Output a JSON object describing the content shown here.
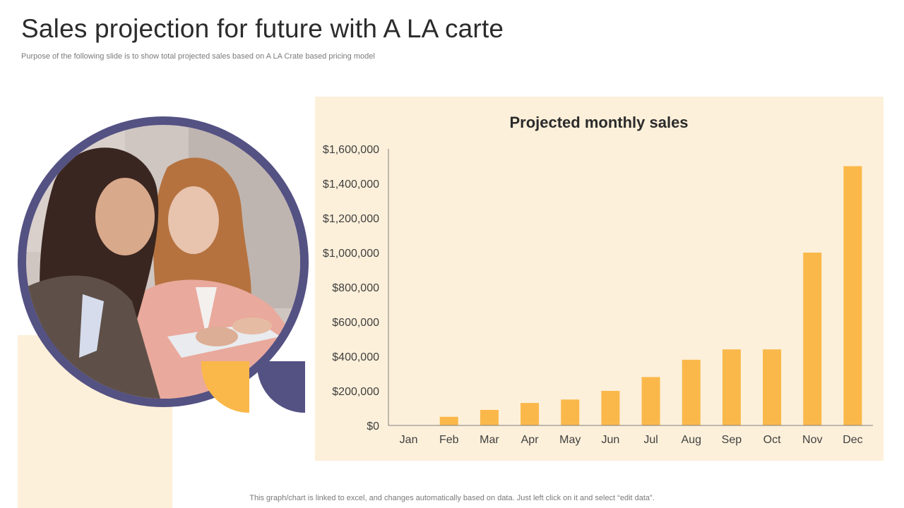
{
  "slide": {
    "title": "Sales projection for future with A LA carte",
    "subtitle": "Purpose of the following slide is to show total projected sales based on A LA Crate based pricing model",
    "footer": "This graph/chart is linked to excel,  and changes automatically based on data. Just left click on it and select “edit data”."
  },
  "colors": {
    "accent_yellow": "#fbb84a",
    "accent_purple": "#545183",
    "panel_bg": "#fdf0da"
  },
  "chart_data": {
    "type": "bar",
    "title": "Projected monthly sales",
    "xlabel": "",
    "ylabel": "",
    "categories": [
      "Jan",
      "Feb",
      "Mar",
      "Apr",
      "May",
      "Jun",
      "Jul",
      "Aug",
      "Sep",
      "Oct",
      "Nov",
      "Dec"
    ],
    "values": [
      0,
      50000,
      90000,
      130000,
      150000,
      200000,
      280000,
      380000,
      440000,
      440000,
      1000000,
      1500000
    ],
    "ylim": [
      0,
      1600000
    ],
    "yticks": [
      0,
      200000,
      400000,
      600000,
      800000,
      1000000,
      1200000,
      1400000,
      1600000
    ],
    "ytick_labels": [
      "$0",
      "$200,000",
      "$400,000",
      "$600,000",
      "$800,000",
      "$1,000,000",
      "$1,200,000",
      "$1,400,000",
      "$1,600,000"
    ],
    "bar_color": "#fbb84a",
    "grid": false,
    "legend": "none"
  }
}
